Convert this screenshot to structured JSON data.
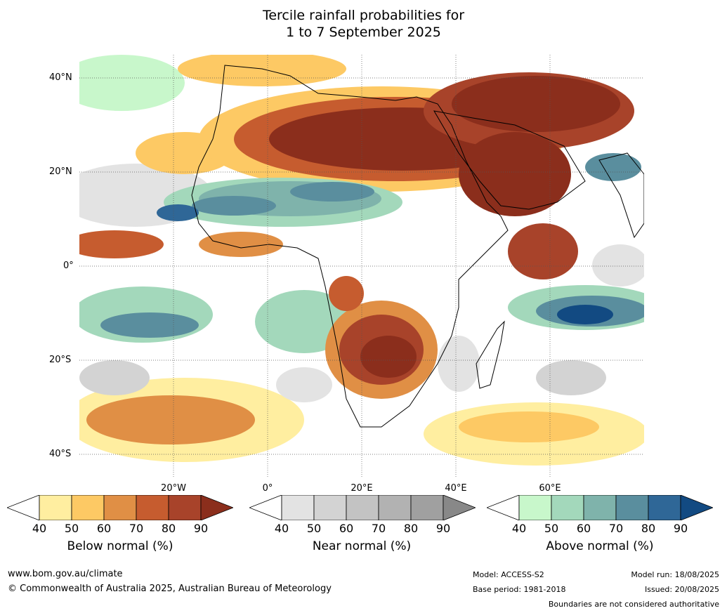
{
  "title": {
    "line1": "Tercile rainfall probabilities for",
    "line2": "1 to 7 September 2025"
  },
  "lat_labels": [
    "40°N",
    "20°N",
    "0°",
    "20°S",
    "40°S"
  ],
  "lon_labels": [
    "20°W",
    "0°",
    "20°E",
    "40°E",
    "60°E"
  ],
  "colorbars": [
    {
      "label": "Below normal (%)",
      "ticks": [
        "40",
        "50",
        "60",
        "70",
        "80",
        "90"
      ],
      "colors": [
        "#ffffff",
        "#ffeea0",
        "#fdc964",
        "#e08f45",
        "#c65c2f",
        "#a8432a",
        "#8b2e1c"
      ]
    },
    {
      "label": "Near normal (%)",
      "ticks": [
        "40",
        "50",
        "60",
        "70",
        "80",
        "90"
      ],
      "colors": [
        "#ffffff",
        "#e3e3e3",
        "#d3d3d3",
        "#c3c3c3",
        "#b2b2b2",
        "#a0a0a0",
        "#888888"
      ]
    },
    {
      "label": "Above normal (%)",
      "ticks": [
        "40",
        "50",
        "60",
        "70",
        "80",
        "90"
      ],
      "colors": [
        "#ffffff",
        "#c8f7cb",
        "#a3d8bb",
        "#7fb3ab",
        "#5a8e9e",
        "#2f6797",
        "#124a82"
      ]
    }
  ],
  "footer": {
    "website": "www.bom.gov.au/climate",
    "copyright": "© Commonwealth of Australia 2025, Australian Bureau of Meteorology",
    "model": "Model: ACCESS-S2",
    "base_period": "Base period: 1981-2018",
    "model_run": "Model run: 18/08/2025",
    "issued": "Issued: 20/08/2025",
    "disclaimer": "Boundaries are not considered authoritative"
  }
}
